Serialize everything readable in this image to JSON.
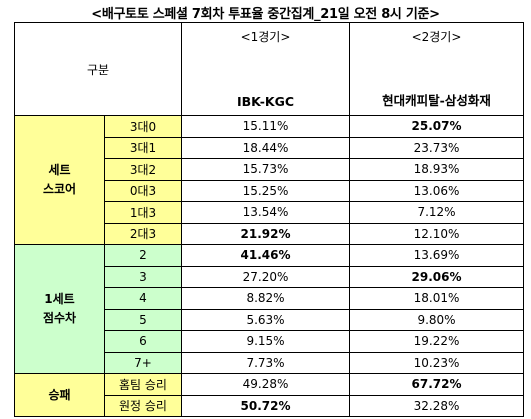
{
  "title": "<배구토토 스페셜 7회차 투표율 중간집계_21일 오전 8시 기준>",
  "header": {
    "category_label": "구분",
    "games": [
      {
        "label": "<1경기>",
        "teams": "IBK-KGC"
      },
      {
        "label": "<2경기>",
        "teams": "현대캐피탈-삼성화재"
      }
    ]
  },
  "sections": [
    {
      "name_line1": "세트",
      "name_line2": "스코어",
      "rows": [
        {
          "label": "3대0",
          "g1": "15.11%",
          "g2": "25.07%",
          "bold": [
            false,
            true
          ]
        },
        {
          "label": "3대1",
          "g1": "18.44%",
          "g2": "23.73%",
          "bold": [
            false,
            false
          ]
        },
        {
          "label": "3대2",
          "g1": "15.73%",
          "g2": "18.93%",
          "bold": [
            false,
            false
          ]
        },
        {
          "label": "0대3",
          "g1": "15.25%",
          "g2": "13.06%",
          "bold": [
            false,
            false
          ]
        },
        {
          "label": "1대3",
          "g1": "13.54%",
          "g2": "7.12%",
          "bold": [
            false,
            false
          ]
        },
        {
          "label": "2대3",
          "g1": "21.92%",
          "g2": "12.10%",
          "bold": [
            true,
            false
          ]
        }
      ]
    },
    {
      "name_line1": "1세트",
      "name_line2": "점수차",
      "rows": [
        {
          "label": "2",
          "g1": "41.46%",
          "g2": "13.69%",
          "bold": [
            true,
            false
          ]
        },
        {
          "label": "3",
          "g1": "27.20%",
          "g2": "29.06%",
          "bold": [
            false,
            true
          ]
        },
        {
          "label": "4",
          "g1": "8.82%",
          "g2": "18.01%",
          "bold": [
            false,
            false
          ]
        },
        {
          "label": "5",
          "g1": "5.63%",
          "g2": "9.80%",
          "bold": [
            false,
            false
          ]
        },
        {
          "label": "6",
          "g1": "9.15%",
          "g2": "19.22%",
          "bold": [
            false,
            false
          ]
        },
        {
          "label": "7+",
          "g1": "7.73%",
          "g2": "10.23%",
          "bold": [
            false,
            false
          ]
        }
      ]
    },
    {
      "name_line1": "승패",
      "name_line2": "",
      "rows": [
        {
          "label": "홈팀 승리",
          "g1": "49.28%",
          "g2": "67.72%",
          "bold": [
            false,
            true
          ]
        },
        {
          "label": "원정 승리",
          "g1": "50.72%",
          "g2": "32.28%",
          "bold": [
            true,
            false
          ]
        }
      ]
    }
  ],
  "colors": {
    "yellow": "#ffff99",
    "green": "#ccffcc"
  }
}
